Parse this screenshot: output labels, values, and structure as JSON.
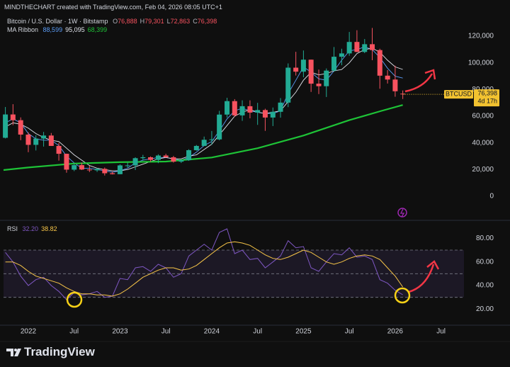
{
  "header": {
    "attribution": "MINDTHECHART created with TradingView.com, Feb 04, 2026 08:05 UTC+1"
  },
  "footer": {
    "brand": "TradingView"
  },
  "chart_data": [
    {
      "type": "candlestick",
      "title": "Bitcoin / U.S. Dollar · 1W · Bitstamp",
      "ohlc_keys": [
        "O",
        "H",
        "L",
        "C"
      ],
      "ohlc_labels": [
        "76,888",
        "79,301",
        "72,863",
        "76,398"
      ],
      "symbol": "BTCUSD",
      "last_label": "76,398",
      "countdown": "4d 17h",
      "up_color": "#22ab94",
      "down_color": "#f7525f",
      "last_color": "#f2c230",
      "xlim": [
        2021.73,
        2026.75
      ],
      "x": [
        2021.75,
        2021.833,
        2021.917,
        2022,
        2022.083,
        2022.167,
        2022.25,
        2022.333,
        2022.417,
        2022.5,
        2022.583,
        2022.667,
        2022.75,
        2022.833,
        2022.917,
        2023,
        2023.083,
        2023.167,
        2023.25,
        2023.333,
        2023.417,
        2023.5,
        2023.583,
        2023.667,
        2023.75,
        2023.833,
        2023.917,
        2024,
        2024.083,
        2024.167,
        2024.25,
        2024.333,
        2024.417,
        2024.5,
        2024.583,
        2024.667,
        2024.75,
        2024.833,
        2024.917,
        2025,
        2025.083,
        2025.167,
        2025.25,
        2025.333,
        2025.417,
        2025.5,
        2025.583,
        2025.667,
        2025.75,
        2025.833,
        2025.917,
        2026,
        2026.083
      ],
      "open": [
        43800,
        61300,
        57000,
        46200,
        38500,
        43200,
        45500,
        37700,
        31800,
        19900,
        23300,
        20000,
        19400,
        20500,
        17200,
        16500,
        23100,
        23100,
        28500,
        29200,
        27200,
        30500,
        29200,
        25900,
        27000,
        34500,
        37700,
        42300,
        42600,
        61200,
        71300,
        60600,
        67500,
        62700,
        64600,
        59000,
        63300,
        70200,
        96400,
        93400,
        102400,
        84400,
        82500,
        94200,
        104600,
        107100,
        115700,
        108200,
        114000,
        109600,
        90400,
        87500,
        76888
      ],
      "high": [
        66900,
        69000,
        59100,
        47900,
        45800,
        48200,
        47400,
        40000,
        31900,
        24700,
        25200,
        22800,
        21100,
        21500,
        18400,
        23900,
        25200,
        29200,
        31000,
        29800,
        31400,
        31800,
        30200,
        27500,
        35200,
        38400,
        44700,
        48900,
        64000,
        73800,
        72800,
        71900,
        71900,
        70000,
        65600,
        66500,
        73600,
        99600,
        108300,
        109300,
        102500,
        95000,
        95800,
        111900,
        110600,
        123200,
        124500,
        117900,
        126200,
        110600,
        94600,
        97900,
        79301
      ],
      "low": [
        43300,
        53300,
        42000,
        33000,
        34300,
        37200,
        37700,
        26700,
        17600,
        18800,
        19600,
        18100,
        18200,
        15500,
        16300,
        16500,
        21400,
        19600,
        26900,
        25800,
        24800,
        28900,
        25200,
        24900,
        26500,
        34100,
        37600,
        38500,
        41900,
        59000,
        59600,
        56500,
        58400,
        53500,
        49000,
        52600,
        58900,
        66800,
        90500,
        89200,
        78200,
        76600,
        74400,
        93400,
        98200,
        105300,
        108000,
        107300,
        102000,
        80600,
        84500,
        74600,
        72863
      ],
      "close": [
        61300,
        57000,
        46200,
        38500,
        43200,
        45500,
        37700,
        31800,
        19900,
        23300,
        20000,
        19400,
        20500,
        17200,
        16500,
        23100,
        23100,
        28500,
        29200,
        27200,
        30500,
        29200,
        25900,
        27000,
        34500,
        37700,
        42300,
        42600,
        61200,
        71300,
        60600,
        67500,
        62700,
        64600,
        59000,
        63300,
        70200,
        96400,
        93400,
        102400,
        84400,
        82500,
        94200,
        104600,
        107100,
        115700,
        108200,
        114000,
        109600,
        90400,
        87500,
        78700,
        76398
      ],
      "ylim": [
        -16000,
        136000
      ],
      "yticks": [
        0,
        {
          "value": 20000,
          "label": "20,000"
        },
        {
          "value": 40000,
          "label": "40,000"
        },
        {
          "value": 60000,
          "label": "60,000"
        },
        {
          "value": 80000,
          "label": "80,000"
        },
        {
          "value": 100000,
          "label": "100,000"
        },
        {
          "value": 120000,
          "label": "120,000"
        }
      ],
      "indicator": {
        "name": "MA Ribbon",
        "series": [
          {
            "color": "#5b9cf6",
            "last_label": "88,599",
            "values": [
              55000,
              58000,
              55000,
              47000,
              43000,
              42000,
              42000,
              38000,
              30000,
              25000,
              21000,
              21000,
              20000,
              19000,
              18000,
              19000,
              21000,
              25000,
              27000,
              28000,
              29000,
              29000,
              28000,
              27000,
              29000,
              33000,
              38000,
              41000,
              49000,
              58000,
              64000,
              66000,
              64000,
              63000,
              62000,
              62000,
              64000,
              77000,
              87000,
              97000,
              93000,
              88000,
              87000,
              94000,
              102000,
              109000,
              110000,
              112000,
              110000,
              104000,
              96000,
              90000,
              88599
            ]
          },
          {
            "color": "#e0e3eb",
            "last_label": "95,095",
            "values": [
              52000,
              55000,
              54000,
              51000,
              47000,
              44000,
              42000,
              41000,
              36000,
              31000,
              27000,
              23000,
              21000,
              20000,
              19000,
              19000,
              20000,
              22000,
              24000,
              26000,
              28000,
              29000,
              28000,
              28000,
              30000,
              31000,
              35000,
              39000,
              46000,
              53000,
              60000,
              63000,
              65000,
              63000,
              62000,
              63000,
              64000,
              71000,
              78000,
              87000,
              93000,
              91000,
              92000,
              94000,
              95000,
              100000,
              107000,
              110000,
              111000,
              108000,
              102000,
              97000,
              95095
            ]
          },
          {
            "color": "#1ec337",
            "last_label": "68,399",
            "x": [
              2021.73,
              2022,
              2022.5,
              2023,
              2023.5,
              2024,
              2024.5,
              2025,
              2025.5,
              2025.85,
              2026.083
            ],
            "values": [
              19600,
              21500,
              24500,
              25500,
              26000,
              29000,
              36000,
              45500,
              57000,
              64000,
              68399
            ]
          }
        ]
      }
    },
    {
      "type": "line",
      "title": "RSI",
      "xlim": [
        2021.73,
        2026.75
      ],
      "xticks": [
        {
          "value": 2022,
          "label": "2022"
        },
        {
          "value": 2022.5,
          "label": "Jul"
        },
        {
          "value": 2023,
          "label": "2023"
        },
        {
          "value": 2023.5,
          "label": "Jul"
        },
        {
          "value": 2024,
          "label": "2024"
        },
        {
          "value": 2024.5,
          "label": "Jul"
        },
        {
          "value": 2025,
          "label": "2025"
        },
        {
          "value": 2025.5,
          "label": "Jul"
        },
        {
          "value": 2026,
          "label": "2026"
        },
        {
          "value": 2026.5,
          "label": "Jul"
        }
      ],
      "x": [
        2021.75,
        2021.833,
        2021.917,
        2022,
        2022.083,
        2022.167,
        2022.25,
        2022.333,
        2022.417,
        2022.5,
        2022.583,
        2022.667,
        2022.75,
        2022.833,
        2022.917,
        2023,
        2023.083,
        2023.167,
        2023.25,
        2023.333,
        2023.417,
        2023.5,
        2023.583,
        2023.667,
        2023.75,
        2023.833,
        2023.917,
        2024,
        2024.083,
        2024.167,
        2024.25,
        2024.333,
        2024.417,
        2024.5,
        2024.583,
        2024.667,
        2024.75,
        2024.833,
        2024.917,
        2025,
        2025.083,
        2025.167,
        2025.25,
        2025.333,
        2025.417,
        2025.5,
        2025.583,
        2025.667,
        2025.75,
        2025.833,
        2025.917,
        2026,
        2026.083
      ],
      "series": [
        {
          "color": "#7e57c2",
          "last_label": "32.20",
          "values": [
            68,
            60,
            48,
            40,
            45,
            47,
            40,
            35,
            28,
            34,
            32,
            33,
            35,
            30,
            31,
            46,
            45,
            55,
            56,
            52,
            58,
            55,
            47,
            50,
            65,
            70,
            75,
            70,
            85,
            88,
            67,
            70,
            62,
            63,
            55,
            60,
            65,
            78,
            72,
            73,
            55,
            52,
            60,
            67,
            66,
            72,
            64,
            65,
            62,
            45,
            42,
            36,
            32.2
          ]
        },
        {
          "color": "#f7c548",
          "last_label": "38.82",
          "values": [
            60,
            60,
            57,
            52,
            48,
            46,
            44,
            42,
            38,
            35,
            33,
            33,
            32,
            32,
            31,
            33,
            37,
            42,
            47,
            50,
            53,
            55,
            55,
            53,
            54,
            57,
            62,
            67,
            72,
            76,
            77,
            76,
            74,
            70,
            66,
            63,
            62,
            64,
            67,
            70,
            68,
            64,
            60,
            58,
            60,
            63,
            65,
            66,
            65,
            62,
            55,
            48,
            38.82
          ]
        }
      ],
      "ylim": [
        7,
        91
      ],
      "yticks": [
        {
          "value": 20,
          "label": "20.00"
        },
        {
          "value": 40,
          "label": "40.00"
        },
        {
          "value": 60,
          "label": "60.00"
        },
        {
          "value": 80,
          "label": "80.00"
        }
      ],
      "levels": [
        30,
        50,
        70
      ],
      "band": [
        30,
        70
      ]
    }
  ]
}
